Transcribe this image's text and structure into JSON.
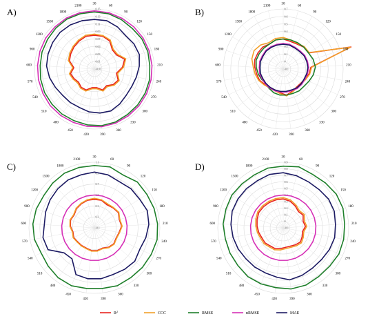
{
  "chart_data": [
    {
      "type": "radar",
      "panel": "A)",
      "directions": [
        "30",
        "60",
        "90",
        "120",
        "150",
        "180",
        "210",
        "240",
        "270",
        "300",
        "330",
        "360",
        "390",
        "420",
        "450",
        "480",
        "510",
        "540",
        "570",
        "600",
        "900",
        "1200",
        "1500",
        "1800",
        "2100"
      ],
      "radial_ticks": [
        "-0.01",
        "0.01",
        "0.03",
        "0.05",
        "0.07",
        "0.09",
        "0.11",
        "0.13",
        "0.15"
      ],
      "rlim": [
        -0.01,
        0.15
      ],
      "series": [
        {
          "name": "R²",
          "values": [
            0.08,
            0.08,
            0.075,
            0.06,
            0.06,
            0.075,
            0.065,
            0.05,
            0.06,
            0.055,
            0.045,
            0.05,
            0.04,
            0.04,
            0.05,
            0.05,
            0.045,
            0.05,
            0.055,
            0.045,
            0.06,
            0.065,
            0.07,
            0.075,
            0.08
          ]
        },
        {
          "name": "CCC",
          "values": [
            0.083,
            0.082,
            0.078,
            0.063,
            0.063,
            0.078,
            0.068,
            0.053,
            0.063,
            0.058,
            0.048,
            0.053,
            0.043,
            0.043,
            0.053,
            0.053,
            0.048,
            0.053,
            0.058,
            0.048,
            0.063,
            0.068,
            0.073,
            0.078,
            0.083
          ]
        },
        {
          "name": "RMSE",
          "values": [
            0.142,
            0.142,
            0.14,
            0.138,
            0.14,
            0.14,
            0.138,
            0.14,
            0.14,
            0.14,
            0.14,
            0.142,
            0.142,
            0.14,
            0.138,
            0.138,
            0.137,
            0.137,
            0.136,
            0.135,
            0.137,
            0.138,
            0.14,
            0.142,
            0.142
          ]
        },
        {
          "name": "nRMSE",
          "values": [
            0.145,
            0.145,
            0.144,
            0.144,
            0.144,
            0.144,
            0.144,
            0.144,
            0.144,
            0.144,
            0.144,
            0.145,
            0.145,
            0.144,
            0.143,
            0.143,
            0.143,
            0.142,
            0.142,
            0.142,
            0.143,
            0.144,
            0.144,
            0.145,
            0.145
          ]
        },
        {
          "name": "MAE",
          "values": [
            0.122,
            0.123,
            0.118,
            0.112,
            0.115,
            0.116,
            0.11,
            0.104,
            0.1,
            0.1,
            0.105,
            0.11,
            0.108,
            0.105,
            0.1,
            0.1,
            0.1,
            0.105,
            0.112,
            0.118,
            0.12,
            0.122,
            0.124,
            0.124,
            0.123
          ]
        }
      ]
    },
    {
      "type": "radar",
      "panel": "B)",
      "directions": [
        "30",
        "60",
        "90",
        "120",
        "150",
        "180",
        "210",
        "240",
        "270",
        "300",
        "330",
        "360",
        "390",
        "420",
        "450",
        "480",
        "510",
        "540",
        "570",
        "600",
        "900",
        "1200",
        "1500",
        "1800",
        "2100"
      ],
      "radial_ticks": [
        "-0.1",
        "0",
        "0.1",
        "0.2",
        "0.3",
        "0.4",
        "0.5",
        "0.6",
        "0.7"
      ],
      "rlim": [
        -0.1,
        0.7
      ],
      "series": [
        {
          "name": "R²",
          "values": [
            0.3,
            0.28,
            0.28,
            0.3,
            0.3,
            0.85,
            0.27,
            0.25,
            0.22,
            0.2,
            0.2,
            0.22,
            0.25,
            0.22,
            0.2,
            0.2,
            0.22,
            0.25,
            0.26,
            0.28,
            0.3,
            0.3,
            0.3,
            0.28,
            0.3
          ]
        },
        {
          "name": "CCC",
          "values": [
            0.32,
            0.3,
            0.29,
            0.31,
            0.31,
            0.84,
            0.28,
            0.26,
            0.23,
            0.21,
            0.21,
            0.23,
            0.26,
            0.23,
            0.21,
            0.21,
            0.23,
            0.26,
            0.28,
            0.3,
            0.34,
            0.36,
            0.34,
            0.3,
            0.32
          ]
        },
        {
          "name": "RMSE",
          "values": [
            0.3,
            0.3,
            0.3,
            0.3,
            0.3,
            0.32,
            0.33,
            0.31,
            0.28,
            0.26,
            0.26,
            0.25,
            0.25,
            0.25,
            0.24,
            0.22,
            0.2,
            0.22,
            0.24,
            0.26,
            0.28,
            0.28,
            0.28,
            0.28,
            0.3
          ]
        },
        {
          "name": "nRMSE",
          "values": [
            0.24,
            0.24,
            0.23,
            0.23,
            0.24,
            0.24,
            0.24,
            0.23,
            0.22,
            0.22,
            0.22,
            0.21,
            0.21,
            0.21,
            0.21,
            0.21,
            0.21,
            0.21,
            0.22,
            0.22,
            0.23,
            0.23,
            0.24,
            0.24,
            0.24
          ]
        },
        {
          "name": "MAE",
          "values": [
            0.23,
            0.23,
            0.22,
            0.22,
            0.23,
            0.23,
            0.23,
            0.22,
            0.21,
            0.21,
            0.21,
            0.2,
            0.2,
            0.2,
            0.2,
            0.2,
            0.2,
            0.2,
            0.21,
            0.21,
            0.22,
            0.22,
            0.23,
            0.23,
            0.23
          ]
        }
      ]
    },
    {
      "type": "radar",
      "panel": "C)",
      "directions": [
        "30",
        "60",
        "90",
        "120",
        "150",
        "180",
        "210",
        "240",
        "270",
        "300",
        "330",
        "360",
        "390",
        "420",
        "450",
        "480",
        "510",
        "540",
        "570",
        "600",
        "900",
        "1200",
        "1500",
        "1800",
        "2100"
      ],
      "radial_ticks": [
        "-0.1",
        "0.1",
        "0.3",
        "0.5",
        "0.7",
        "0.9",
        "1.1"
      ],
      "rlim": [
        -0.1,
        1.1
      ],
      "series": [
        {
          "name": "R²",
          "values": [
            0.42,
            0.42,
            0.38,
            0.4,
            0.42,
            0.38,
            0.4,
            0.36,
            0.34,
            0.36,
            0.34,
            0.3,
            0.32,
            0.32,
            0.3,
            0.3,
            0.3,
            0.32,
            0.3,
            0.34,
            0.36,
            0.34,
            0.38,
            0.4,
            0.42
          ]
        },
        {
          "name": "CCC",
          "values": [
            0.44,
            0.43,
            0.4,
            0.41,
            0.43,
            0.39,
            0.41,
            0.37,
            0.35,
            0.37,
            0.35,
            0.31,
            0.33,
            0.33,
            0.31,
            0.31,
            0.31,
            0.33,
            0.31,
            0.35,
            0.37,
            0.35,
            0.39,
            0.41,
            0.43
          ]
        },
        {
          "name": "RMSE",
          "values": [
            1.04,
            1.05,
            1.0,
            1.05,
            1.04,
            1.05,
            1.06,
            1.07,
            1.05,
            1.04,
            1.03,
            1.04,
            1.02,
            1.02,
            1.04,
            1.03,
            1.0,
            0.98,
            1.02,
            1.03,
            1.02,
            1.0,
            1.02,
            1.04,
            1.04
          ]
        },
        {
          "name": "nRMSE",
          "values": [
            0.5,
            0.5,
            0.5,
            0.5,
            0.5,
            0.5,
            0.5,
            0.5,
            0.5,
            0.5,
            0.5,
            0.5,
            0.5,
            0.5,
            0.5,
            0.5,
            0.5,
            0.5,
            0.5,
            0.5,
            0.5,
            0.5,
            0.5,
            0.5,
            0.5
          ]
        },
        {
          "name": "MAE",
          "values": [
            0.92,
            0.9,
            0.86,
            0.88,
            0.88,
            0.92,
            0.9,
            0.86,
            0.82,
            0.86,
            0.84,
            0.82,
            0.84,
            0.84,
            0.82,
            0.6,
            0.62,
            0.84,
            0.86,
            0.82,
            0.84,
            0.86,
            0.88,
            0.9,
            0.9
          ]
        }
      ]
    },
    {
      "type": "radar",
      "panel": "D)",
      "directions": [
        "30",
        "60",
        "90",
        "120",
        "150",
        "180",
        "210",
        "240",
        "270",
        "300",
        "330",
        "360",
        "390",
        "420",
        "450",
        "480",
        "510",
        "540",
        "570",
        "600",
        "900",
        "1200",
        "1500",
        "1800",
        "2100"
      ],
      "radial_ticks": [
        "-0.1",
        "0",
        "0.1",
        "0.2",
        "0.3",
        "0.4",
        "0.5",
        "0.6",
        "0.7",
        "0.8",
        "0.9"
      ],
      "rlim": [
        -0.1,
        0.9
      ],
      "series": [
        {
          "name": "R²",
          "values": [
            0.34,
            0.32,
            0.28,
            0.24,
            0.26,
            0.22,
            0.24,
            0.2,
            0.22,
            0.24,
            0.22,
            0.2,
            0.2,
            0.22,
            0.24,
            0.24,
            0.26,
            0.26,
            0.28,
            0.3,
            0.32,
            0.34,
            0.34,
            0.34,
            0.34
          ]
        },
        {
          "name": "CCC",
          "values": [
            0.36,
            0.34,
            0.3,
            0.26,
            0.28,
            0.24,
            0.26,
            0.22,
            0.24,
            0.26,
            0.24,
            0.22,
            0.22,
            0.24,
            0.26,
            0.26,
            0.28,
            0.28,
            0.3,
            0.32,
            0.34,
            0.36,
            0.36,
            0.36,
            0.36
          ]
        },
        {
          "name": "RMSE",
          "values": [
            0.84,
            0.86,
            0.83,
            0.84,
            0.86,
            0.86,
            0.84,
            0.84,
            0.84,
            0.82,
            0.82,
            0.84,
            0.84,
            0.82,
            0.82,
            0.82,
            0.8,
            0.8,
            0.8,
            0.82,
            0.82,
            0.83,
            0.82,
            0.82,
            0.84
          ]
        },
        {
          "name": "nRMSE",
          "values": [
            0.4,
            0.4,
            0.4,
            0.4,
            0.4,
            0.4,
            0.4,
            0.4,
            0.4,
            0.4,
            0.4,
            0.4,
            0.4,
            0.4,
            0.4,
            0.4,
            0.4,
            0.4,
            0.4,
            0.4,
            0.4,
            0.4,
            0.4,
            0.4,
            0.4
          ]
        },
        {
          "name": "MAE",
          "values": [
            0.74,
            0.72,
            0.7,
            0.7,
            0.72,
            0.72,
            0.7,
            0.7,
            0.68,
            0.66,
            0.66,
            0.68,
            0.7,
            0.66,
            0.64,
            0.64,
            0.64,
            0.66,
            0.68,
            0.7,
            0.72,
            0.72,
            0.72,
            0.72,
            0.74
          ]
        }
      ]
    }
  ],
  "legend": {
    "items": [
      {
        "label": "R",
        "sup": "2",
        "color": "#e8231f"
      },
      {
        "label": "CCC",
        "sup": "",
        "color": "#f2a02a"
      },
      {
        "label": "RMSE",
        "sup": "",
        "color": "#1e7f2a"
      },
      {
        "label": "nRMSE",
        "sup": "",
        "color": "#d62fb6"
      },
      {
        "label": "MAE",
        "sup": "",
        "color": "#1c1a63"
      }
    ]
  },
  "series_colors": {
    "R²": "#e8231f",
    "CCC": "#f2a02a",
    "RMSE": "#1e7f2a",
    "nRMSE": "#d62fb6",
    "MAE": "#1c1a63"
  },
  "grid": true
}
